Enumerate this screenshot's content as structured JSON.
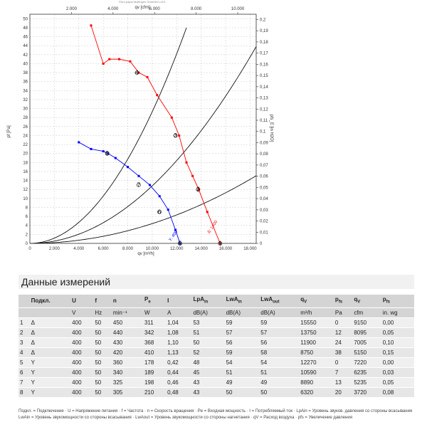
{
  "chart_data": {
    "type": "line",
    "header_text": "Ebm-papst Мulfingen GmbH&Co.KG",
    "x_top_label": "qv [cfm]",
    "x_top_ticks": [
      2000,
      4000,
      6000,
      8000,
      10000
    ],
    "x_top_tick_labels": [
      "2.000",
      "4.000",
      "6.000",
      "8.000",
      "10.000"
    ],
    "x_bottom_label": "qv [m³/h]",
    "x_bottom_ticks": [
      0,
      2000,
      4000,
      6000,
      8000,
      10000,
      12000,
      14000,
      16000,
      18000
    ],
    "x_bottom_tick_labels": [
      "0",
      "2.000",
      "4.000",
      "6.000",
      "8.000",
      "10.000",
      "12.000",
      "14.000",
      "16.000",
      "18.000"
    ],
    "xlim": [
      0,
      18500
    ],
    "y_left_label": "pf [Pa]",
    "ylim": [
      0,
      51
    ],
    "y_left_ticks": [
      0,
      2,
      4,
      6,
      8,
      10,
      12,
      14,
      16,
      18,
      20,
      22,
      24,
      26,
      28,
      30,
      32,
      34,
      36,
      38,
      40,
      42,
      44,
      46,
      48,
      50
    ],
    "y_right_label": "pfs_E [in H2O]",
    "y_right_ticks": [
      0,
      0.01,
      0.02,
      0.03,
      0.04,
      0.05,
      0.06,
      0.07,
      0.08,
      0.09,
      0.1,
      0.11,
      0.12,
      0.13,
      0.14,
      0.15,
      0.16,
      0.17,
      0.18,
      0.19,
      0.2
    ],
    "y_right_tick_labels": [
      "0",
      "0,01",
      "0,02",
      "0,03",
      "0,04",
      "0,05",
      "0,06",
      "0,07",
      "0,08",
      "0,09",
      "0,1",
      "0,11",
      "0,12",
      "0,13",
      "0,14",
      "0,15",
      "0,16",
      "0,17",
      "0,18",
      "0,19",
      "0,2"
    ],
    "grid": true,
    "series": [
      {
        "name": "Δ",
        "color": "#ff0000",
        "x": [
          5000,
          6000,
          6500,
          7300,
          8200,
          8900,
          9600,
          10400,
          11600,
          12200,
          12800,
          13300,
          13800,
          14500,
          15550
        ],
        "y": [
          48.5,
          40,
          41,
          41,
          40.5,
          38,
          37,
          33,
          28,
          24,
          18,
          15,
          12,
          7,
          0
        ]
      },
      {
        "name": "Y",
        "color": "#0000ff",
        "x": [
          4000,
          5000,
          6000,
          6400,
          7000,
          8000,
          8900,
          9800,
          10600,
          11300,
          11900,
          12270
        ],
        "y": [
          22.5,
          21,
          20.5,
          20,
          19,
          17,
          15,
          13,
          10.5,
          7.5,
          3,
          0
        ]
      }
    ],
    "system_curves": [
      {
        "label": "",
        "k": 2.93e-07
      },
      {
        "label": "",
        "k": 1.28e-07
      },
      {
        "label": "",
        "k": 4.4e-08
      }
    ],
    "operating_points": [
      {
        "label": "1",
        "x": 15550,
        "y": 0
      },
      {
        "label": "2",
        "x": 13750,
        "y": 12
      },
      {
        "label": "3",
        "x": 11900,
        "y": 24
      },
      {
        "label": "4",
        "x": 8750,
        "y": 38
      },
      {
        "label": "5",
        "x": 12270,
        "y": 0
      },
      {
        "label": "6",
        "x": 10590,
        "y": 7
      },
      {
        "label": "7",
        "x": 8890,
        "y": 13
      },
      {
        "label": "8",
        "x": 6320,
        "y": 20
      }
    ],
    "curve_labels": [
      {
        "text": "Δ: 1400",
        "x": 15000,
        "y": 3.5,
        "color": "#ff0000"
      },
      {
        "text": "Y: 400",
        "x": 11800,
        "y": 1.5,
        "color": "#0000ff"
      }
    ]
  },
  "table": {
    "section_title": "Данные измерений",
    "headers": [
      {
        "main": "",
        "sub": ""
      },
      {
        "main": "Подкл.",
        "sub": ""
      },
      {
        "main": "U",
        "sub": ""
      },
      {
        "main": "f",
        "sub": ""
      },
      {
        "main": "n",
        "sub": ""
      },
      {
        "main": "P",
        "sub": "e"
      },
      {
        "main": "I",
        "sub": ""
      },
      {
        "main": "LpA",
        "sub": "in"
      },
      {
        "main": "LwA",
        "sub": "in"
      },
      {
        "main": "LwA",
        "sub": "out"
      },
      {
        "main": "q",
        "sub": "V"
      },
      {
        "main": "p",
        "sub": "fs"
      },
      {
        "main": "q",
        "sub": "V"
      },
      {
        "main": "p",
        "sub": "fs"
      }
    ],
    "units": [
      "",
      "",
      "V",
      "Hz",
      "min⁻¹",
      "W",
      "A",
      "dB(A)",
      "dB(A)",
      "dB(A)",
      "m³/h",
      "Pa",
      "cfm",
      "in. wg"
    ],
    "rows": [
      [
        "1",
        "Δ",
        "400",
        "50",
        "450",
        "311",
        "1,04",
        "53",
        "59",
        "59",
        "15550",
        "0",
        "9150",
        "0,00"
      ],
      [
        "2",
        "Δ",
        "400",
        "50",
        "440",
        "342",
        "1,08",
        "51",
        "57",
        "57",
        "13750",
        "12",
        "8095",
        "0,05"
      ],
      [
        "3",
        "Δ",
        "400",
        "50",
        "430",
        "368",
        "1,10",
        "50",
        "56",
        "56",
        "11900",
        "24",
        "7005",
        "0,10"
      ],
      [
        "4",
        "Δ",
        "400",
        "50",
        "420",
        "410",
        "1,13",
        "52",
        "59",
        "58",
        "8750",
        "38",
        "5150",
        "0,15"
      ],
      [
        "5",
        "Y",
        "400",
        "50",
        "360",
        "178",
        "0,42",
        "48",
        "54",
        "54",
        "12270",
        "0",
        "7220",
        "0,00"
      ],
      [
        "6",
        "Y",
        "400",
        "50",
        "340",
        "189",
        "0,44",
        "45",
        "51",
        "51",
        "10590",
        "7",
        "6235",
        "0,03"
      ],
      [
        "7",
        "Y",
        "400",
        "50",
        "325",
        "198",
        "0,46",
        "43",
        "49",
        "49",
        "8890",
        "13",
        "5235",
        "0,05"
      ],
      [
        "8",
        "Y",
        "400",
        "50",
        "305",
        "210",
        "0,48",
        "43",
        "50",
        "50",
        "6320",
        "20",
        "3720",
        "0,08"
      ]
    ]
  },
  "footer": {
    "line1": "Подкл. = Подключение · U = Напряжение питания · f = Частота · n = Скорость вращения · Pe = Входная мощность · I = Потребляемый ток · LpAin = Уровень звуков. давления со стороны всасывания",
    "line2": "LwAin = Уровень звукомощности со стороны всасывания · LwAout = Уровень звукомощности со стороны нагнетания · qV = Расход воздуха · pfs = Увеличение давления"
  }
}
